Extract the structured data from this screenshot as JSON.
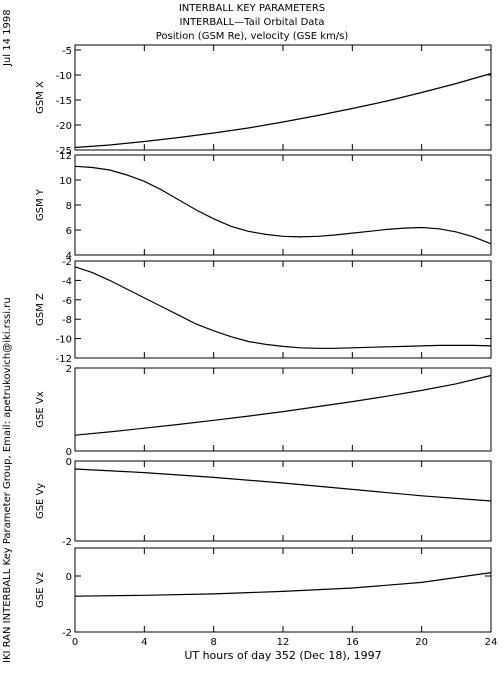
{
  "page": {
    "date_label": "Jul 14 1998",
    "credit": "IKI RAN INTERBALL Key Parameter Group, Email: apetrukovich@iki.rssi.ru",
    "titles": [
      "INTERBALL KEY PARAMETERS",
      "INTERBALL—Tail Orbital Data",
      "Position (GSM Re), velocity (GSE km/s)"
    ]
  },
  "chart_data": {
    "type": "line",
    "x_axis": {
      "label": "UT hours of day 352 (Dec 18), 1997",
      "range": [
        0,
        24
      ],
      "ticks": [
        0,
        4,
        8,
        12,
        16,
        20,
        24
      ]
    },
    "panels": [
      {
        "ylabel": "GSM X",
        "ylim": [
          -25,
          -4
        ],
        "yticks": [
          -25,
          -20,
          -15,
          -10,
          -5
        ],
        "x": [
          0,
          2,
          4,
          6,
          8,
          10,
          12,
          14,
          16,
          18,
          20,
          22,
          24
        ],
        "y": [
          -24.5,
          -24.0,
          -23.3,
          -22.5,
          -21.6,
          -20.6,
          -19.4,
          -18.1,
          -16.7,
          -15.2,
          -13.5,
          -11.7,
          -9.7
        ]
      },
      {
        "ylabel": "GSM Y",
        "ylim": [
          4,
          12
        ],
        "yticks": [
          4,
          6,
          8,
          10,
          12
        ],
        "x": [
          0,
          1,
          2,
          3,
          4,
          5,
          6,
          7,
          8,
          9,
          10,
          11,
          12,
          13,
          14,
          15,
          16,
          17,
          18,
          19,
          20,
          21,
          22,
          23,
          24
        ],
        "y": [
          11.1,
          11.0,
          10.8,
          10.4,
          9.9,
          9.2,
          8.4,
          7.6,
          6.9,
          6.3,
          5.9,
          5.65,
          5.5,
          5.45,
          5.5,
          5.6,
          5.75,
          5.9,
          6.05,
          6.15,
          6.2,
          6.1,
          5.85,
          5.45,
          4.9
        ]
      },
      {
        "ylabel": "GSM Z",
        "ylim": [
          -12,
          -2
        ],
        "yticks": [
          -12,
          -10,
          -8,
          -6,
          -4,
          -2
        ],
        "x": [
          0,
          1,
          2,
          3,
          4,
          5,
          6,
          7,
          8,
          9,
          10,
          11,
          12,
          13,
          14,
          15,
          16,
          17,
          18,
          19,
          20,
          21,
          22,
          23,
          24
        ],
        "y": [
          -2.6,
          -3.2,
          -4.0,
          -4.9,
          -5.8,
          -6.7,
          -7.6,
          -8.5,
          -9.2,
          -9.8,
          -10.3,
          -10.6,
          -10.8,
          -10.95,
          -11.0,
          -11.0,
          -10.95,
          -10.9,
          -10.85,
          -10.8,
          -10.75,
          -10.7,
          -10.7,
          -10.7,
          -10.75
        ]
      },
      {
        "ylabel": "GSE Vx",
        "ylim": [
          0,
          2
        ],
        "yticks": [
          0,
          2
        ],
        "x": [
          0,
          2,
          4,
          6,
          8,
          10,
          12,
          14,
          16,
          18,
          20,
          22,
          24
        ],
        "y": [
          0.38,
          0.46,
          0.55,
          0.64,
          0.74,
          0.84,
          0.95,
          1.07,
          1.19,
          1.32,
          1.46,
          1.62,
          1.82
        ]
      },
      {
        "ylabel": "GSE Vy",
        "ylim": [
          -2,
          0
        ],
        "yticks": [
          -2,
          0
        ],
        "x": [
          0,
          4,
          8,
          12,
          16,
          20,
          24
        ],
        "y": [
          -0.2,
          -0.29,
          -0.41,
          -0.55,
          -0.71,
          -0.87,
          -1.0
        ]
      },
      {
        "ylabel": "GSE Vz",
        "ylim": [
          -2,
          1
        ],
        "yticks": [
          -2,
          0
        ],
        "x": [
          0,
          4,
          8,
          12,
          16,
          20,
          24
        ],
        "y": [
          -0.72,
          -0.69,
          -0.64,
          -0.55,
          -0.43,
          -0.23,
          0.12
        ]
      }
    ]
  }
}
